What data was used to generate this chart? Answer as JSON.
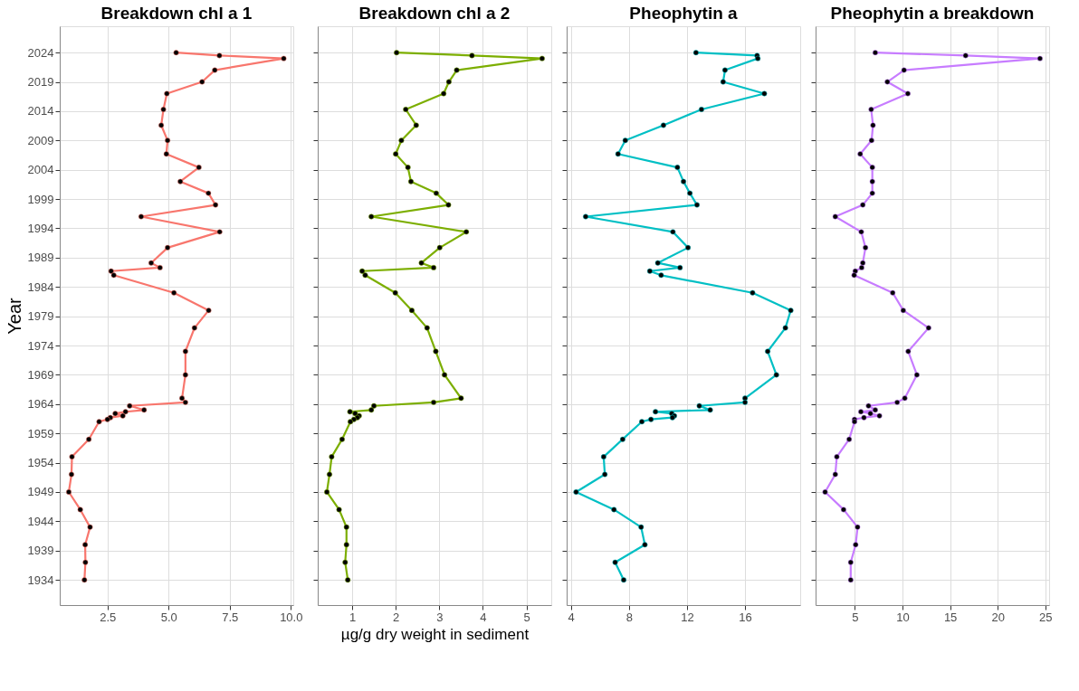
{
  "chart_data": [
    {
      "type": "line",
      "title": "Breakdown chl a 1",
      "ylabel": "Year",
      "marker": "circle",
      "grid": true,
      "xlim": [
        0.55,
        10.1
      ],
      "xticks": [
        {
          "value": 2.5,
          "label": "2.5"
        },
        {
          "value": 5,
          "label": "5.0"
        },
        {
          "value": 7.5,
          "label": "7.5"
        },
        {
          "value": 10,
          "label": "10.0"
        }
      ],
      "ylim": [
        1929.7,
        2028.5
      ],
      "yticks": [
        1934,
        1939,
        1944,
        1949,
        1954,
        1959,
        1964,
        1969,
        1974,
        1979,
        1984,
        1989,
        1994,
        1999,
        2004,
        2009,
        2014,
        2019,
        2024
      ],
      "series": [
        {
          "color": "#f8766d",
          "x": [
            5.31,
            7.08,
            9.71,
            6.89,
            6.37,
            4.93,
            4.79,
            4.7,
            4.96,
            4.91,
            6.24,
            5.48,
            6.63,
            6.92,
            3.88,
            7.09,
            4.96,
            4.29,
            4.65,
            2.65,
            2.76,
            5.22,
            6.64,
            6.06,
            5.69,
            5.69,
            5.55,
            5.69,
            3.41,
            4.0,
            3.24,
            2.82,
            3.13,
            2.62,
            2.5,
            2.16,
            1.74,
            1.05,
            1.03,
            0.92,
            1.39,
            1.79,
            1.59,
            1.6,
            1.56
          ],
          "values": [
            2024,
            2023.5,
            2023,
            2021,
            2019,
            2017,
            2014.3,
            2011.6,
            2009,
            2006.7,
            2004.4,
            2002,
            2000,
            1998,
            1996,
            1993.4,
            1990.7,
            1988.1,
            1987.3,
            1986.7,
            1986,
            1983,
            1980,
            1977,
            1973,
            1969,
            1965,
            1964.3,
            1963.7,
            1963,
            1962.7,
            1962.4,
            1962,
            1961.7,
            1961.4,
            1961,
            1958,
            1955,
            1952,
            1949,
            1946,
            1943,
            1940,
            1937,
            1934
          ]
        }
      ]
    },
    {
      "type": "line",
      "title": "Breakdown chl a 2",
      "xlabel": "µg/g dry weight in sediment",
      "marker": "circle",
      "grid": true,
      "tick_labels": "x",
      "xlim": [
        0.21,
        5.57
      ],
      "xticks": [
        1,
        2,
        3,
        4,
        5
      ],
      "ylim": [
        1929.7,
        2028.5
      ],
      "yticks": [
        1934,
        1939,
        1944,
        1949,
        1954,
        1959,
        1964,
        1969,
        1974,
        1979,
        1984,
        1989,
        1994,
        1999,
        2004,
        2009,
        2014,
        2019,
        2024
      ],
      "series": [
        {
          "color": "#7cae00",
          "x": [
            2.02,
            3.75,
            5.36,
            3.4,
            3.22,
            3.1,
            2.23,
            2.47,
            2.13,
            2.0,
            2.28,
            2.35,
            2.93,
            3.21,
            1.44,
            3.62,
            3.01,
            2.59,
            2.87,
            1.23,
            1.3,
            1.99,
            2.37,
            2.72,
            2.92,
            3.12,
            3.5,
            2.87,
            1.5,
            1.44,
            0.95,
            1.07,
            1.16,
            1.12,
            1.04,
            0.96,
            0.77,
            0.53,
            0.48,
            0.42,
            0.7,
            0.87,
            0.87,
            0.84,
            0.9
          ],
          "values": [
            2024,
            2023.5,
            2023,
            2021,
            2019,
            2017,
            2014.3,
            2011.6,
            2009,
            2006.7,
            2004.4,
            2002,
            2000,
            1998,
            1996,
            1993.4,
            1990.7,
            1988.1,
            1987.3,
            1986.7,
            1986,
            1983,
            1980,
            1977,
            1973,
            1969,
            1965,
            1964.3,
            1963.7,
            1963,
            1962.7,
            1962.4,
            1962,
            1961.7,
            1961.4,
            1961,
            1958,
            1955,
            1952,
            1949,
            1946,
            1943,
            1940,
            1937,
            1934
          ]
        }
      ]
    },
    {
      "type": "line",
      "title": "Pheophytin a",
      "marker": "circle",
      "grid": true,
      "tick_labels": "x",
      "xlim": [
        3.71,
        19.8
      ],
      "xticks": [
        4,
        8,
        12,
        16
      ],
      "ylim": [
        1929.7,
        2028.5
      ],
      "yticks": [
        1934,
        1939,
        1944,
        1949,
        1954,
        1959,
        1964,
        1969,
        1974,
        1979,
        1984,
        1989,
        1994,
        1999,
        2004,
        2009,
        2014,
        2019,
        2024
      ],
      "series": [
        {
          "color": "#00bfc4",
          "x": [
            12.62,
            16.83,
            16.88,
            14.62,
            14.49,
            17.33,
            13.0,
            10.38,
            7.75,
            7.25,
            11.34,
            11.76,
            12.2,
            12.69,
            5.02,
            11.03,
            12.07,
            9.99,
            11.52,
            9.44,
            10.22,
            16.52,
            19.15,
            18.78,
            17.56,
            18.16,
            16.0,
            16.0,
            12.85,
            13.6,
            9.83,
            10.95,
            11.13,
            11.0,
            9.52,
            8.89,
            7.57,
            6.26,
            6.34,
            4.36,
            6.97,
            8.84,
            9.1,
            7.05,
            7.64
          ],
          "values": [
            2024,
            2023.5,
            2023,
            2021,
            2019,
            2017,
            2014.3,
            2011.6,
            2009,
            2006.7,
            2004.4,
            2002,
            2000,
            1998,
            1996,
            1993.4,
            1990.7,
            1988.1,
            1987.3,
            1986.7,
            1986,
            1983,
            1980,
            1977,
            1973,
            1969,
            1965,
            1964.3,
            1963.7,
            1963,
            1962.7,
            1962.4,
            1962,
            1961.7,
            1961.4,
            1961,
            1958,
            1955,
            1952,
            1949,
            1946,
            1943,
            1940,
            1937,
            1934
          ]
        }
      ]
    },
    {
      "type": "line",
      "title": "Pheophytin a breakdown",
      "marker": "circle",
      "grid": true,
      "tick_labels": "x",
      "xlim": [
        0.87,
        25.4
      ],
      "xticks": [
        5,
        10,
        15,
        20,
        25
      ],
      "ylim": [
        1929.7,
        2028.5
      ],
      "yticks": [
        1934,
        1939,
        1944,
        1949,
        1954,
        1959,
        1964,
        1969,
        1974,
        1979,
        1984,
        1989,
        1994,
        1999,
        2004,
        2009,
        2014,
        2019,
        2024
      ],
      "series": [
        {
          "color": "#c77cff",
          "x": [
            7.14,
            16.63,
            24.44,
            10.16,
            8.41,
            10.56,
            6.71,
            6.9,
            6.75,
            5.56,
            6.83,
            6.83,
            6.83,
            5.83,
            2.94,
            5.67,
            6.11,
            5.83,
            5.71,
            5.04,
            4.92,
            8.97,
            10.08,
            12.74,
            10.6,
            11.51,
            10.24,
            9.44,
            6.43,
            7.14,
            5.63,
            6.63,
            7.58,
            5.95,
            4.96,
            4.96,
            4.4,
            3.1,
            2.94,
            1.87,
            3.81,
            5.28,
            5.08,
            4.56,
            4.56
          ],
          "values": [
            2024,
            2023.5,
            2023,
            2021,
            2019,
            2017,
            2014.3,
            2011.6,
            2009,
            2006.7,
            2004.4,
            2002,
            2000,
            1998,
            1996,
            1993.4,
            1990.7,
            1988.1,
            1987.3,
            1986.7,
            1986,
            1983,
            1980,
            1977,
            1973,
            1969,
            1965,
            1964.3,
            1963.7,
            1963,
            1962.7,
            1962.4,
            1962,
            1961.7,
            1961.4,
            1961,
            1958,
            1955,
            1952,
            1949,
            1946,
            1943,
            1940,
            1937,
            1934
          ]
        }
      ]
    }
  ]
}
